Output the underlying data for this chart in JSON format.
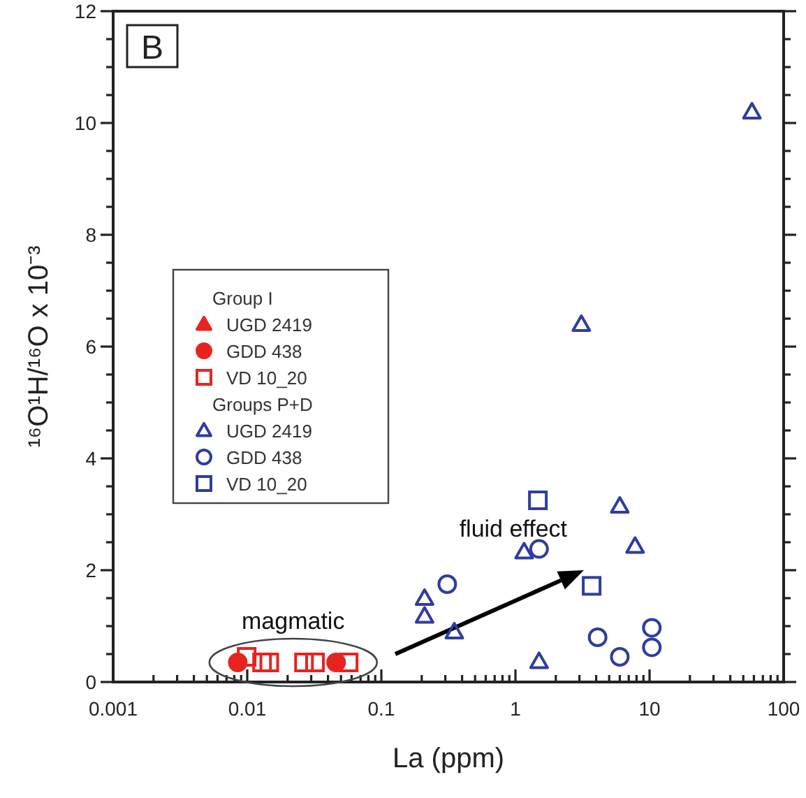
{
  "chart_data": {
    "type": "scatter",
    "xlabel": "La (ppm)",
    "ylabel": "¹⁶O¹H/¹⁶O x 10⁻³",
    "log": "x",
    "xlim": [
      0.001,
      100
    ],
    "ylim": [
      0,
      12
    ],
    "xticks": [
      0.001,
      {
        "value": 0.002,
        "label": null
      },
      {
        "value": 0.003,
        "label": null
      },
      {
        "value": 0.004,
        "label": null
      },
      {
        "value": 0.005,
        "label": null
      },
      {
        "value": 0.006,
        "label": null
      },
      {
        "value": 0.007,
        "label": null
      },
      {
        "value": 0.008,
        "label": null
      },
      {
        "value": 0.009,
        "label": null
      },
      0.01,
      {
        "value": 0.02,
        "label": null
      },
      {
        "value": 0.03,
        "label": null
      },
      {
        "value": 0.04,
        "label": null
      },
      {
        "value": 0.05,
        "label": null
      },
      {
        "value": 0.06,
        "label": null
      },
      {
        "value": 0.07,
        "label": null
      },
      {
        "value": 0.08,
        "label": null
      },
      {
        "value": 0.09,
        "label": null
      },
      0.1,
      {
        "value": 0.2,
        "label": null
      },
      {
        "value": 0.3,
        "label": null
      },
      {
        "value": 0.4,
        "label": null
      },
      {
        "value": 0.5,
        "label": null
      },
      {
        "value": 0.6,
        "label": null
      },
      {
        "value": 0.7,
        "label": null
      },
      {
        "value": 0.8,
        "label": null
      },
      {
        "value": 0.9,
        "label": null
      },
      1,
      {
        "value": 2,
        "label": null
      },
      {
        "value": 3,
        "label": null
      },
      {
        "value": 4,
        "label": null
      },
      {
        "value": 5,
        "label": null
      },
      {
        "value": 6,
        "label": null
      },
      {
        "value": 7,
        "label": null
      },
      {
        "value": 8,
        "label": null
      },
      {
        "value": 9,
        "label": null
      },
      10,
      {
        "value": 20,
        "label": null
      },
      {
        "value": 30,
        "label": null
      },
      {
        "value": 40,
        "label": null
      },
      {
        "value": 50,
        "label": null
      },
      {
        "value": 60,
        "label": null
      },
      {
        "value": 70,
        "label": null
      },
      {
        "value": 80,
        "label": null
      },
      {
        "value": 90,
        "label": null
      },
      100
    ],
    "yticks": [
      0,
      {
        "value": 0.5,
        "label": null
      },
      {
        "value": 1,
        "label": null
      },
      {
        "value": 1.5,
        "label": null
      },
      2,
      {
        "value": 2.5,
        "label": null
      },
      {
        "value": 3,
        "label": null
      },
      {
        "value": 3.5,
        "label": null
      },
      4,
      {
        "value": 4.5,
        "label": null
      },
      {
        "value": 5,
        "label": null
      },
      {
        "value": 5.5,
        "label": null
      },
      6,
      {
        "value": 6.5,
        "label": null
      },
      {
        "value": 7,
        "label": null
      },
      {
        "value": 7.5,
        "label": null
      },
      8,
      {
        "value": 8.5,
        "label": null
      },
      {
        "value": 9,
        "label": null
      },
      {
        "value": 9.5,
        "label": null
      },
      10,
      {
        "value": 10.5,
        "label": null
      },
      {
        "value": 11,
        "label": null
      },
      {
        "value": 11.5,
        "label": null
      },
      12
    ],
    "grid": false,
    "legend": "left",
    "annotations": [
      "B",
      "Group I",
      "Groups P+D",
      {
        "text": "magmatic",
        "x": 0.022,
        "y": 0.35
      },
      "fluid effect"
    ],
    "series": [
      {
        "name": "UGD 2419",
        "color": "#e8231f",
        "marker": "triangle"
      },
      {
        "name": "GDD 438",
        "color": "#e8231f",
        "marker": "circle",
        "x": [
          0.0085,
          0.046
        ],
        "values": [
          0.35,
          0.35
        ]
      },
      {
        "name": "VD 10_20",
        "color": "#e8231f",
        "marker": "square",
        "x": [
          0.0099,
          0.0129,
          0.0146,
          0.0265,
          0.032,
          0.057
        ],
        "values": [
          0.45,
          0.35,
          0.35,
          0.35,
          0.35,
          0.35
        ]
      },
      {
        "name": "UGD 2419",
        "color": "#2e3d9e",
        "marker": "triangle",
        "x": [
          58,
          3.1,
          6.0,
          7.8,
          1.16,
          0.21,
          0.21,
          0.35,
          1.5
        ],
        "values": [
          10.2,
          6.4,
          3.15,
          2.43,
          2.33,
          1.5,
          1.18,
          0.9,
          0.37
        ]
      },
      {
        "name": "GDD 438",
        "color": "#2e3d9e",
        "marker": "circle",
        "x": [
          1.5,
          0.31,
          4.1,
          6.0,
          10.4,
          10.4
        ],
        "values": [
          2.38,
          1.75,
          0.8,
          0.45,
          0.97,
          0.62
        ]
      },
      {
        "name": "VD 10_20",
        "color": "#2e3d9e",
        "marker": "square",
        "x": [
          1.47,
          3.7
        ],
        "values": [
          3.25,
          1.72
        ]
      }
    ]
  }
}
